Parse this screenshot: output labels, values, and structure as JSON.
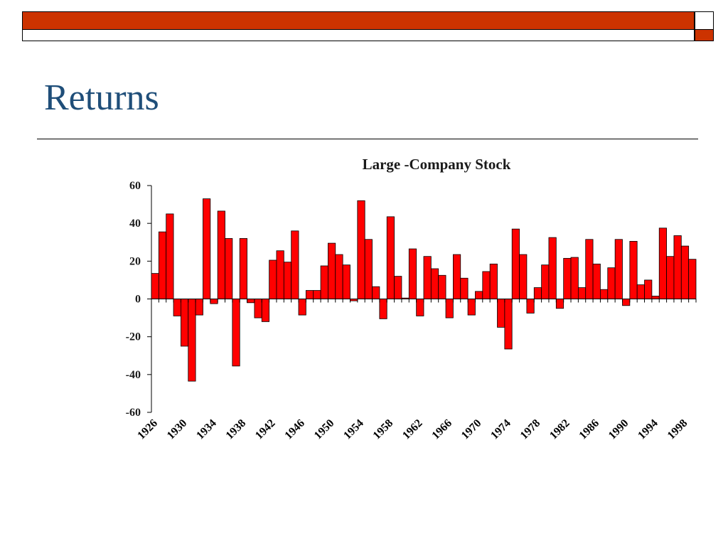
{
  "slide": {
    "title": "Returns",
    "accent_color": "#cc3300",
    "title_color": "#1f4e79"
  },
  "chart_data": {
    "type": "bar",
    "title": "Large -Company Stock",
    "xlabel": "",
    "ylabel": "",
    "ylim": [
      -60,
      60
    ],
    "yticks": [
      60,
      40,
      20,
      0,
      -20,
      -40,
      -60
    ],
    "bar_color": "#ff0000",
    "grid": false,
    "x_tick_labels": [
      "1926",
      "1930",
      "1934",
      "1938",
      "1942",
      "1946",
      "1950",
      "1954",
      "1958",
      "1962",
      "1966",
      "1970",
      "1974",
      "1978",
      "1982",
      "1986",
      "1990",
      "1994",
      "1998"
    ],
    "years": [
      1926,
      1927,
      1928,
      1929,
      1930,
      1931,
      1932,
      1933,
      1934,
      1935,
      1936,
      1937,
      1938,
      1939,
      1940,
      1941,
      1942,
      1943,
      1944,
      1945,
      1946,
      1947,
      1948,
      1949,
      1950,
      1951,
      1952,
      1953,
      1954,
      1955,
      1956,
      1957,
      1958,
      1959,
      1960,
      1961,
      1962,
      1963,
      1964,
      1965,
      1966,
      1967,
      1968,
      1969,
      1970,
      1971,
      1972,
      1973,
      1974,
      1975,
      1976,
      1977,
      1978,
      1979,
      1980,
      1981,
      1982,
      1983,
      1984,
      1985,
      1986,
      1987,
      1988,
      1989,
      1990,
      1991,
      1992,
      1993,
      1994,
      1995,
      1996,
      1997,
      1998,
      1999
    ],
    "values": [
      13.5,
      35.5,
      45,
      -9,
      -25,
      -43.5,
      -8.5,
      53,
      -2.5,
      46.5,
      32,
      -35.5,
      32,
      -2,
      -10,
      -12,
      20.5,
      25.5,
      19.5,
      36,
      -8.5,
      4.5,
      4.5,
      17.5,
      29.5,
      23.5,
      18,
      -1,
      52,
      31.5,
      6.5,
      -10.5,
      43.5,
      12,
      0.5,
      26.5,
      -9,
      22.5,
      16,
      12.5,
      -10,
      23.5,
      11,
      -8.5,
      4,
      14.5,
      18.5,
      -15,
      -26.5,
      37,
      23.5,
      -7.5,
      6,
      18,
      32.5,
      -5,
      21.5,
      22,
      6,
      31.5,
      18.5,
      5,
      16.5,
      31.5,
      -3.5,
      30.5,
      7.5,
      10,
      1.5,
      37.5,
      22.5,
      33.5,
      28,
      21
    ]
  }
}
